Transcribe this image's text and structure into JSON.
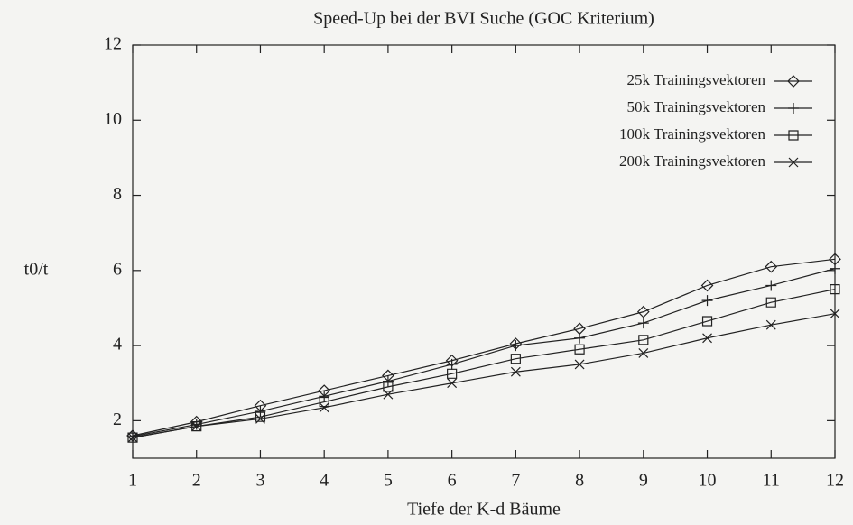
{
  "chart_data": {
    "type": "line",
    "title": "Speed-Up bei der BVI Suche (GOC Kriterium)",
    "x_label": "Tiefe der K-d Bäume",
    "y_label": "t0/t",
    "x": [
      1,
      2,
      3,
      4,
      5,
      6,
      7,
      8,
      9,
      10,
      11,
      12
    ],
    "xlim": [
      1,
      12
    ],
    "xticks": [
      1,
      2,
      3,
      4,
      5,
      6,
      7,
      8,
      9,
      10,
      11,
      12
    ],
    "ylim": [
      1,
      12
    ],
    "yticks": [
      2,
      4,
      6,
      8,
      10,
      12
    ],
    "legend": "top-right",
    "series": [
      {
        "name": "25k Trainingsvektoren",
        "color": "#222",
        "marker": "diamond",
        "values": [
          1.6,
          1.97,
          2.4,
          2.8,
          3.2,
          3.6,
          4.05,
          4.45,
          4.9,
          5.6,
          6.1,
          6.3
        ]
      },
      {
        "name": "50k Trainingsvektoren",
        "color": "#222",
        "marker": "plus",
        "values": [
          1.58,
          1.9,
          2.25,
          2.65,
          3.05,
          3.5,
          4.0,
          4.2,
          4.6,
          5.2,
          5.6,
          6.05
        ]
      },
      {
        "name": "100k Trainingsvektoren",
        "color": "#222",
        "marker": "square",
        "values": [
          1.55,
          1.85,
          2.1,
          2.5,
          2.9,
          3.25,
          3.65,
          3.9,
          4.15,
          4.65,
          5.15,
          5.5
        ]
      },
      {
        "name": "200k Trainingsvektoren",
        "color": "#222",
        "marker": "cross",
        "values": [
          1.55,
          1.85,
          2.05,
          2.35,
          2.7,
          3.0,
          3.3,
          3.5,
          3.8,
          4.2,
          4.55,
          4.85
        ]
      }
    ]
  }
}
